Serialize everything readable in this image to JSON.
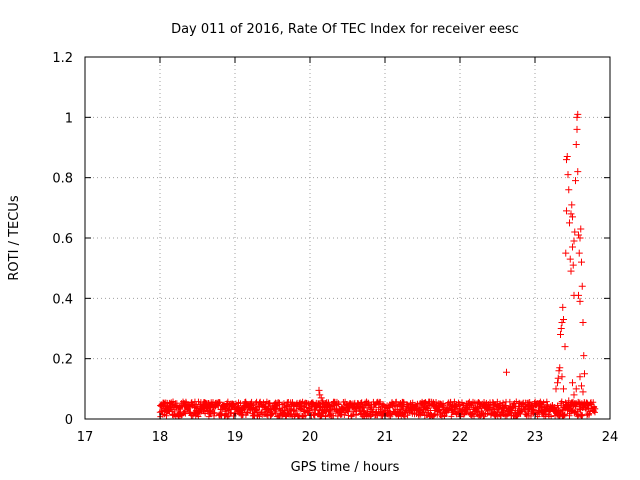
{
  "chart_data": {
    "type": "scatter",
    "title": "Day 011 of 2016, Rate Of TEC Index for receiver eesc",
    "xlabel": "GPS time / hours",
    "ylabel": "ROTI / TECUs",
    "xlim": [
      17,
      24
    ],
    "ylim": [
      0,
      1.2
    ],
    "x_ticks": [
      17,
      18,
      19,
      20,
      21,
      22,
      23,
      24
    ],
    "x_tick_labels": [
      "17",
      "18",
      "19",
      "20",
      "21",
      "22",
      "23",
      "24"
    ],
    "y_ticks": [
      0,
      0.2,
      0.4,
      0.6,
      0.8,
      1.0,
      1.2
    ],
    "y_tick_labels": [
      "0",
      "0.2",
      "0.4",
      "0.6",
      "0.8",
      "1",
      "1.2"
    ],
    "grid": true,
    "marker": "+",
    "marker_color": "#ff0000",
    "band": {
      "name": "ROTI values (dense band)",
      "x_range": [
        18.0,
        23.8
      ],
      "y_range": [
        0.0,
        0.06
      ],
      "typical_value": 0.03
    },
    "series": [
      {
        "name": "ROTI",
        "points": [
          [
            20.12,
            0.095
          ],
          [
            20.13,
            0.08
          ],
          [
            20.15,
            0.07
          ],
          [
            20.17,
            0.06
          ],
          [
            22.62,
            0.155
          ],
          [
            23.28,
            0.1
          ],
          [
            23.3,
            0.12
          ],
          [
            23.31,
            0.135
          ],
          [
            23.32,
            0.16
          ],
          [
            23.33,
            0.17
          ],
          [
            23.34,
            0.28
          ],
          [
            23.35,
            0.3
          ],
          [
            23.36,
            0.32
          ],
          [
            23.37,
            0.37
          ],
          [
            23.38,
            0.33
          ],
          [
            23.36,
            0.14
          ],
          [
            23.38,
            0.1
          ],
          [
            23.4,
            0.24
          ],
          [
            23.41,
            0.55
          ],
          [
            23.42,
            0.69
          ],
          [
            23.42,
            0.86
          ],
          [
            23.43,
            0.87
          ],
          [
            23.44,
            0.81
          ],
          [
            23.45,
            0.76
          ],
          [
            23.46,
            0.65
          ],
          [
            23.47,
            0.53
          ],
          [
            23.48,
            0.49
          ],
          [
            23.48,
            0.68
          ],
          [
            23.49,
            0.71
          ],
          [
            23.5,
            0.67
          ],
          [
            23.5,
            0.57
          ],
          [
            23.51,
            0.51
          ],
          [
            23.52,
            0.41
          ],
          [
            23.52,
            0.59
          ],
          [
            23.53,
            0.62
          ],
          [
            23.54,
            0.79
          ],
          [
            23.55,
            0.91
          ],
          [
            23.56,
            0.96
          ],
          [
            23.56,
            1.0
          ],
          [
            23.57,
            1.01
          ],
          [
            23.57,
            0.82
          ],
          [
            23.58,
            0.61
          ],
          [
            23.58,
            0.41
          ],
          [
            23.59,
            0.55
          ],
          [
            23.6,
            0.39
          ],
          [
            23.6,
            0.6
          ],
          [
            23.61,
            0.63
          ],
          [
            23.62,
            0.52
          ],
          [
            23.63,
            0.44
          ],
          [
            23.64,
            0.32
          ],
          [
            23.65,
            0.21
          ],
          [
            23.5,
            0.12
          ],
          [
            23.52,
            0.08
          ],
          [
            23.55,
            0.1
          ],
          [
            23.6,
            0.14
          ],
          [
            23.62,
            0.11
          ],
          [
            23.64,
            0.09
          ],
          [
            23.66,
            0.15
          ],
          [
            23.45,
            0.06
          ],
          [
            23.7,
            0.05
          ]
        ]
      }
    ]
  }
}
